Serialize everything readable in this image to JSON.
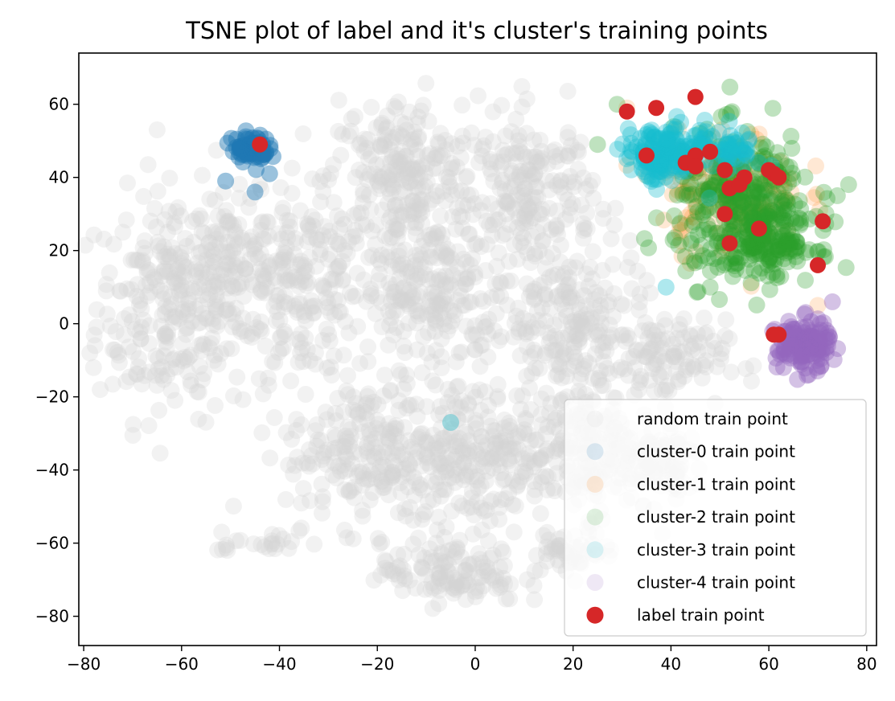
{
  "chart_data": {
    "type": "scatter",
    "title": "TSNE plot of label and it's cluster's training points",
    "xlabel": "",
    "ylabel": "",
    "xlim": [
      -81,
      82
    ],
    "ylim": [
      -88,
      74
    ],
    "xticks": [
      -80,
      -60,
      -40,
      -20,
      0,
      20,
      40,
      60,
      80
    ],
    "yticks": [
      -80,
      -60,
      -40,
      -20,
      0,
      20,
      40,
      60
    ],
    "xtick_labels": [
      "−80",
      "−60",
      "−40",
      "−20",
      "0",
      "20",
      "40",
      "60",
      "80"
    ],
    "ytick_labels": [
      "−80",
      "−60",
      "−40",
      "−20",
      "0",
      "20",
      "40",
      "60"
    ],
    "grid": false,
    "legend_position": "lower right",
    "series": [
      {
        "name": "random train point",
        "color": "#d3d3d3",
        "alpha": 0.3,
        "blobs": [
          {
            "cx": -62,
            "cy": 5,
            "rx": 14,
            "ry": 28,
            "n": 260
          },
          {
            "cx": -50,
            "cy": 15,
            "rx": 12,
            "ry": 18,
            "n": 140
          },
          {
            "cx": -35,
            "cy": 10,
            "rx": 10,
            "ry": 22,
            "n": 160
          },
          {
            "cx": -15,
            "cy": 40,
            "rx": 14,
            "ry": 20,
            "n": 260
          },
          {
            "cx": -10,
            "cy": 8,
            "rx": 16,
            "ry": 18,
            "n": 240
          },
          {
            "cx": 12,
            "cy": 35,
            "rx": 11,
            "ry": 20,
            "n": 200
          },
          {
            "cx": 20,
            "cy": 0,
            "rx": 13,
            "ry": 18,
            "n": 200
          },
          {
            "cx": 38,
            "cy": -10,
            "rx": 12,
            "ry": 10,
            "n": 110
          },
          {
            "cx": -22,
            "cy": -35,
            "rx": 15,
            "ry": 18,
            "n": 220
          },
          {
            "cx": 0,
            "cy": -35,
            "rx": 14,
            "ry": 18,
            "n": 230
          },
          {
            "cx": 22,
            "cy": -35,
            "rx": 13,
            "ry": 16,
            "n": 200
          },
          {
            "cx": 38,
            "cy": -38,
            "rx": 8,
            "ry": 10,
            "n": 70
          },
          {
            "cx": -5,
            "cy": -68,
            "rx": 13,
            "ry": 8,
            "n": 130
          },
          {
            "cx": 20,
            "cy": -62,
            "rx": 8,
            "ry": 5,
            "n": 50
          },
          {
            "cx": -40,
            "cy": -60,
            "rx": 5,
            "ry": 2,
            "n": 15
          },
          {
            "cx": -50,
            "cy": -59,
            "rx": 3,
            "ry": 3,
            "n": 8
          }
        ],
        "points": [
          {
            "x": -65,
            "y": 53
          },
          {
            "x": -72,
            "y": 25
          },
          {
            "x": -64,
            "y": 13
          },
          {
            "x": -78,
            "y": -12
          }
        ]
      },
      {
        "name": "cluster-0 train point",
        "color": "#1f77b4",
        "alpha": 0.45,
        "blobs": [
          {
            "cx": -46,
            "cy": 48,
            "rx": 3.5,
            "ry": 3.5,
            "n": 70
          }
        ],
        "points": [
          {
            "x": -51,
            "y": 39
          },
          {
            "x": -45,
            "y": 36
          },
          {
            "x": -42,
            "y": 41
          }
        ]
      },
      {
        "name": "cluster-1 train point",
        "color": "#ff7f0e",
        "alpha": 0.18,
        "blobs": [
          {
            "cx": 52,
            "cy": 36,
            "rx": 13,
            "ry": 15,
            "n": 150
          }
        ],
        "points": [
          {
            "x": 31,
            "y": 59
          },
          {
            "x": 70,
            "y": 5
          }
        ]
      },
      {
        "name": "cluster-2 train point",
        "color": "#2ca02c",
        "alpha": 0.3,
        "blobs": [
          {
            "cx": 55,
            "cy": 32,
            "rx": 13,
            "ry": 18,
            "n": 320
          },
          {
            "cx": 60,
            "cy": 22,
            "rx": 9,
            "ry": 7,
            "n": 120
          }
        ],
        "points": [
          {
            "x": 25,
            "y": 49
          },
          {
            "x": 29,
            "y": 60
          },
          {
            "x": 74,
            "y": 35
          },
          {
            "x": 48,
            "y": 10
          }
        ]
      },
      {
        "name": "cluster-3 train point",
        "color": "#17becf",
        "alpha": 0.35,
        "blobs": [
          {
            "cx": 38,
            "cy": 46,
            "rx": 7,
            "ry": 7,
            "n": 150
          },
          {
            "cx": 50,
            "cy": 48,
            "rx": 8,
            "ry": 6,
            "n": 70
          }
        ],
        "points": [
          {
            "x": -5,
            "y": -27
          },
          {
            "x": 39,
            "y": 10
          }
        ]
      },
      {
        "name": "cluster-4 train point",
        "color": "#9467bd",
        "alpha": 0.4,
        "blobs": [
          {
            "cx": 67,
            "cy": -6,
            "rx": 5,
            "ry": 6,
            "n": 140
          }
        ],
        "points": [
          {
            "x": 73,
            "y": 6
          },
          {
            "x": 63,
            "y": -12
          }
        ]
      },
      {
        "name": "label train point",
        "color": "#d62728",
        "alpha": 1,
        "points": [
          {
            "x": -44,
            "y": 49
          },
          {
            "x": 31,
            "y": 58
          },
          {
            "x": 37,
            "y": 59
          },
          {
            "x": 45,
            "y": 62
          },
          {
            "x": 35,
            "y": 46
          },
          {
            "x": 43,
            "y": 44
          },
          {
            "x": 45,
            "y": 46
          },
          {
            "x": 45,
            "y": 43
          },
          {
            "x": 48,
            "y": 47
          },
          {
            "x": 51,
            "y": 42
          },
          {
            "x": 52,
            "y": 37
          },
          {
            "x": 54,
            "y": 38
          },
          {
            "x": 55,
            "y": 40
          },
          {
            "x": 60,
            "y": 42
          },
          {
            "x": 61,
            "y": 41
          },
          {
            "x": 62,
            "y": 40
          },
          {
            "x": 51,
            "y": 30
          },
          {
            "x": 52,
            "y": 22
          },
          {
            "x": 58,
            "y": 26
          },
          {
            "x": 71,
            "y": 28
          },
          {
            "x": 70,
            "y": 16
          },
          {
            "x": 61,
            "y": -3
          },
          {
            "x": 62,
            "y": -3
          }
        ]
      }
    ]
  }
}
